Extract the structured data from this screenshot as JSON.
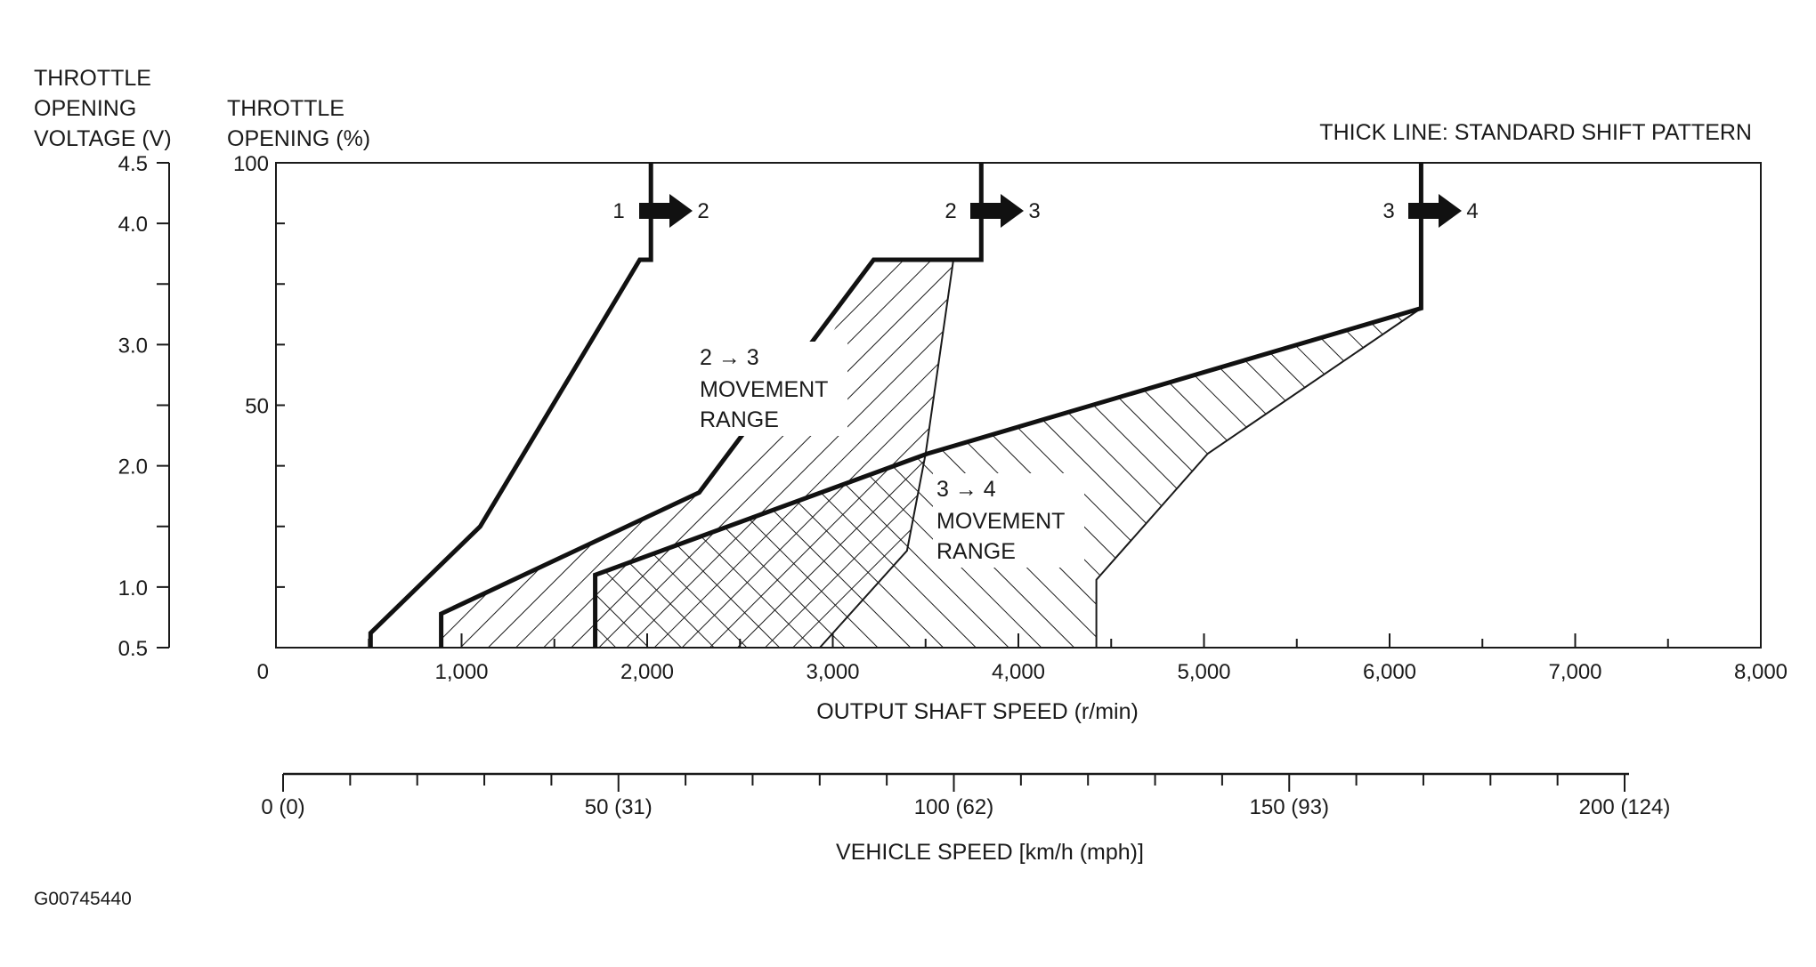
{
  "chart_data": {
    "type": "line",
    "title": "",
    "note": "THICK LINE: STANDARD SHIFT PATTERN",
    "figure_id": "G00745440",
    "left_axis_label": [
      "THROTTLE",
      "OPENING",
      "VOLTAGE (V)"
    ],
    "throttle_axis_label": [
      "THROTTLE",
      "OPENING (%)"
    ],
    "xlabel": "OUTPUT SHAFT SPEED (r/min)",
    "xlim": [
      0,
      8000
    ],
    "ylim": [
      0,
      100
    ],
    "voltage_range": [
      0.5,
      4.5
    ],
    "x_ticks": [
      "0",
      "1,000",
      "2,000",
      "3,000",
      "4,000",
      "5,000",
      "6,000",
      "7,000",
      "8,000"
    ],
    "throttle_ticks": [
      "100",
      "50"
    ],
    "voltage_ticks": [
      "4.5",
      "4.0",
      "3.0",
      "2.0",
      "1.0",
      "0.5"
    ],
    "vehicle_speed_label": "VEHICLE SPEED [km/h (mph)]",
    "vehicle_speed_ticks": [
      "0 (0)",
      "50 (31)",
      "100 (62)",
      "150 (93)",
      "200 (124)"
    ],
    "vehicle_speed_range": [
      0,
      200
    ],
    "shift_arrows": [
      {
        "from": "1",
        "to": "2"
      },
      {
        "from": "2",
        "to": "3"
      },
      {
        "from": "3",
        "to": "4"
      }
    ],
    "region_labels": [
      {
        "arrow": "2 → 3",
        "lines": [
          "MOVEMENT",
          "RANGE"
        ]
      },
      {
        "arrow": "3 → 4",
        "lines": [
          "MOVEMENT",
          "RANGE"
        ]
      }
    ],
    "series": [
      {
        "name": "1 → 2",
        "x": [
          510,
          510,
          1100,
          1960,
          2020,
          2020
        ],
        "y": [
          0,
          3,
          25,
          80,
          80,
          100
        ]
      },
      {
        "name": "2 → 3",
        "x": [
          890,
          890,
          2280,
          3220,
          3800,
          3800
        ],
        "y": [
          0,
          7,
          32,
          80,
          80,
          100
        ]
      },
      {
        "name": "3 → 4",
        "x": [
          1720,
          1720,
          3510,
          6170,
          6170
        ],
        "y": [
          0,
          15,
          40,
          70,
          100
        ]
      }
    ],
    "movement_range_2_3": {
      "upper": {
        "x": [
          890,
          2280,
          2600,
          3000,
          3220,
          3650
        ],
        "y": [
          7,
          32,
          42,
          65,
          80,
          80
        ]
      },
      "lower": {
        "x": [
          890,
          2930,
          3400,
          3500,
          3650
        ],
        "y": [
          0,
          0,
          20,
          40,
          80
        ]
      }
    },
    "movement_range_3_4": {
      "upper": {
        "x": [
          1720,
          3510,
          6170
        ],
        "y": [
          15,
          40,
          70
        ]
      },
      "lower": {
        "x": [
          1720,
          4420,
          4420,
          5020,
          6170
        ],
        "y": [
          0,
          0,
          14,
          40,
          70
        ]
      }
    }
  }
}
